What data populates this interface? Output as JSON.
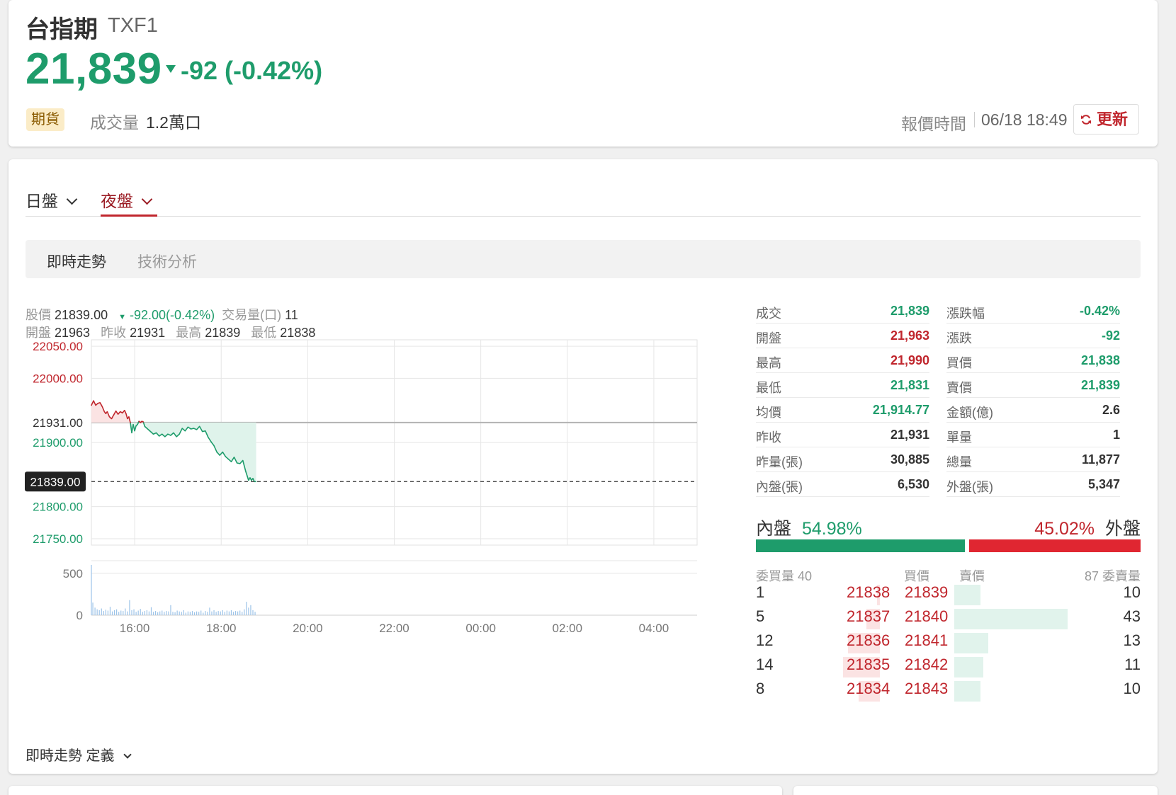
{
  "header": {
    "name": "台指期",
    "code": "TXF1",
    "price": "21,839",
    "change": "-92 (-0.42%)",
    "tag": "期貨",
    "volume_label": "成交量",
    "volume": "1.2萬口",
    "quote_time_label": "報價時間",
    "quote_time": "06/18 18:49",
    "refresh_label": "更新"
  },
  "sessions": {
    "day": "日盤",
    "night": "夜盤",
    "active": "night"
  },
  "subtabs": [
    "即時走勢",
    "技術分析"
  ],
  "chart_info": {
    "price_label": "股價",
    "price": "21839.00",
    "change": "-92.00(-0.42%)",
    "volume_label": "交易量(口)",
    "volume": "11",
    "open_label": "開盤",
    "open": "21963",
    "prev_close_label": "昨收",
    "prev_close": "21931",
    "high_label": "最高",
    "high": "21839",
    "low_label": "最低",
    "low": "21838"
  },
  "chart_data": {
    "type": "line",
    "title": "",
    "y_tick_labels": [
      "22050.00",
      "22000.00",
      "21931.00",
      "21900.00",
      "21839.00",
      "21800.00",
      "21750.00"
    ],
    "y_range": [
      21740,
      22060
    ],
    "reference_price": 21931,
    "current_price": 21839,
    "x_tick_labels": [
      "16:00",
      "18:00",
      "20:00",
      "22:00",
      "00:00",
      "02:00",
      "04:00"
    ],
    "x_range_minutes": [
      0,
      840
    ],
    "x_units": "minutes since 15:00",
    "series": [
      {
        "x": [
          0,
          3,
          6,
          9,
          12,
          15,
          18,
          20,
          22,
          25,
          28,
          31,
          34,
          37,
          40,
          43,
          46,
          48,
          50,
          52,
          54,
          56,
          58,
          60,
          62,
          64,
          66,
          68,
          70,
          72,
          74,
          76,
          79,
          82,
          86,
          90,
          94,
          98,
          102,
          106,
          110,
          114,
          118,
          122,
          126,
          130,
          134,
          138,
          142,
          146,
          150,
          154,
          158,
          162,
          166,
          170,
          174,
          178,
          182,
          186,
          190,
          194,
          198,
          202,
          206,
          210,
          214,
          216,
          218,
          220,
          222,
          224,
          226,
          228
        ],
        "y": [
          21958,
          21965,
          21958,
          21961,
          21962,
          21956,
          21948,
          21945,
          21948,
          21940,
          21937,
          21943,
          21949,
          21944,
          21948,
          21946,
          21950,
          21945,
          21937,
          21940,
          21931,
          21915,
          21928,
          21918,
          21926,
          21928,
          21933,
          21931,
          21933,
          21932,
          21925,
          21923,
          21920,
          21917,
          21913,
          21915,
          21910,
          21913,
          21909,
          21913,
          21911,
          21915,
          21909,
          21913,
          21922,
          21918,
          21924,
          21921,
          21922,
          21920,
          21925,
          21917,
          21918,
          21908,
          21901,
          21895,
          21885,
          21880,
          21885,
          21878,
          21874,
          21870,
          21877,
          21868,
          21867,
          21872,
          21855,
          21848,
          21841,
          21845,
          21841,
          21844,
          21839,
          21839
        ]
      }
    ],
    "volume_axis": {
      "ticks": [
        "500",
        "0"
      ],
      "range": [
        0,
        650
      ]
    },
    "volume_series": [
      {
        "x": 0,
        "v": 600
      },
      {
        "x": 2,
        "v": 150
      },
      {
        "x": 5,
        "v": 90
      },
      {
        "x": 8,
        "v": 70
      },
      {
        "x": 11,
        "v": 60
      },
      {
        "x": 14,
        "v": 80
      },
      {
        "x": 17,
        "v": 50
      },
      {
        "x": 20,
        "v": 65
      },
      {
        "x": 23,
        "v": 55
      },
      {
        "x": 26,
        "v": 100
      },
      {
        "x": 29,
        "v": 45
      },
      {
        "x": 32,
        "v": 60
      },
      {
        "x": 35,
        "v": 70
      },
      {
        "x": 38,
        "v": 40
      },
      {
        "x": 41,
        "v": 55
      },
      {
        "x": 44,
        "v": 50
      },
      {
        "x": 47,
        "v": 80
      },
      {
        "x": 50,
        "v": 45
      },
      {
        "x": 53,
        "v": 180
      },
      {
        "x": 56,
        "v": 60
      },
      {
        "x": 59,
        "v": 70
      },
      {
        "x": 62,
        "v": 40
      },
      {
        "x": 65,
        "v": 55
      },
      {
        "x": 68,
        "v": 75
      },
      {
        "x": 71,
        "v": 40
      },
      {
        "x": 74,
        "v": 50
      },
      {
        "x": 77,
        "v": 60
      },
      {
        "x": 80,
        "v": 45
      },
      {
        "x": 83,
        "v": 95
      },
      {
        "x": 86,
        "v": 40
      },
      {
        "x": 89,
        "v": 50
      },
      {
        "x": 92,
        "v": 35
      },
      {
        "x": 95,
        "v": 45
      },
      {
        "x": 98,
        "v": 55
      },
      {
        "x": 101,
        "v": 40
      },
      {
        "x": 104,
        "v": 50
      },
      {
        "x": 107,
        "v": 45
      },
      {
        "x": 110,
        "v": 120
      },
      {
        "x": 113,
        "v": 40
      },
      {
        "x": 116,
        "v": 35
      },
      {
        "x": 119,
        "v": 55
      },
      {
        "x": 122,
        "v": 45
      },
      {
        "x": 125,
        "v": 40
      },
      {
        "x": 128,
        "v": 60
      },
      {
        "x": 131,
        "v": 30
      },
      {
        "x": 134,
        "v": 45
      },
      {
        "x": 137,
        "v": 40
      },
      {
        "x": 140,
        "v": 50
      },
      {
        "x": 143,
        "v": 35
      },
      {
        "x": 146,
        "v": 45
      },
      {
        "x": 149,
        "v": 40
      },
      {
        "x": 152,
        "v": 55
      },
      {
        "x": 155,
        "v": 30
      },
      {
        "x": 158,
        "v": 50
      },
      {
        "x": 161,
        "v": 40
      },
      {
        "x": 164,
        "v": 90
      },
      {
        "x": 167,
        "v": 45
      },
      {
        "x": 170,
        "v": 60
      },
      {
        "x": 173,
        "v": 40
      },
      {
        "x": 176,
        "v": 50
      },
      {
        "x": 179,
        "v": 45
      },
      {
        "x": 182,
        "v": 60
      },
      {
        "x": 185,
        "v": 40
      },
      {
        "x": 188,
        "v": 55
      },
      {
        "x": 191,
        "v": 45
      },
      {
        "x": 194,
        "v": 60
      },
      {
        "x": 197,
        "v": 40
      },
      {
        "x": 200,
        "v": 50
      },
      {
        "x": 203,
        "v": 45
      },
      {
        "x": 206,
        "v": 55
      },
      {
        "x": 209,
        "v": 40
      },
      {
        "x": 212,
        "v": 70
      },
      {
        "x": 215,
        "v": 160
      },
      {
        "x": 218,
        "v": 90
      },
      {
        "x": 221,
        "v": 120
      },
      {
        "x": 224,
        "v": 60
      },
      {
        "x": 227,
        "v": 40
      }
    ]
  },
  "stats": {
    "rows": [
      {
        "label": "成交",
        "value": "21,839",
        "color": "#1e9c6b"
      },
      {
        "label": "開盤",
        "value": "21,963",
        "color": "#c0262d"
      },
      {
        "label": "最高",
        "value": "21,990",
        "color": "#c0262d"
      },
      {
        "label": "最低",
        "value": "21,831",
        "color": "#1e9c6b"
      },
      {
        "label": "均價",
        "value": "21,914.77",
        "color": "#1e9c6b"
      },
      {
        "label": "昨收",
        "value": "21,931",
        "color": "#333333"
      },
      {
        "label": "昨量(張)",
        "value": "30,885",
        "color": "#333333"
      },
      {
        "label": "內盤(張)",
        "value": "6,530",
        "color": "#333333"
      }
    ],
    "rows2": [
      {
        "label": "漲跌幅",
        "value": "-0.42%",
        "color": "#1e9c6b"
      },
      {
        "label": "漲跌",
        "value": "-92",
        "color": "#1e9c6b"
      },
      {
        "label": "買價",
        "value": "21,838",
        "color": "#1e9c6b"
      },
      {
        "label": "賣價",
        "value": "21,839",
        "color": "#1e9c6b"
      },
      {
        "label": "金額(億)",
        "value": "2.6",
        "color": "#333333"
      },
      {
        "label": "單量",
        "value": "1",
        "color": "#333333"
      },
      {
        "label": "總量",
        "value": "11,877",
        "color": "#333333"
      },
      {
        "label": "外盤(張)",
        "value": "5,347",
        "color": "#333333"
      }
    ]
  },
  "ratio": {
    "inner_label": "內盤",
    "inner_pct": "54.98%",
    "inner_value": 54.98,
    "outer_label": "外盤",
    "outer_pct": "45.02%",
    "outer_value": 45.02
  },
  "orderbook": {
    "bid_qty_header": "委買量 40",
    "bid_price_header": "買價",
    "ask_price_header": "賣價",
    "ask_qty_header": "87 委賣量",
    "rows": [
      {
        "bid_qty": "1",
        "bid": "21838",
        "ask": "21839",
        "ask_qty": "10"
      },
      {
        "bid_qty": "5",
        "bid": "21837",
        "ask": "21840",
        "ask_qty": "43"
      },
      {
        "bid_qty": "12",
        "bid": "21836",
        "ask": "21841",
        "ask_qty": "13"
      },
      {
        "bid_qty": "14",
        "bid": "21835",
        "ask": "21842",
        "ask_qty": "11"
      },
      {
        "bid_qty": "8",
        "bid": "21834",
        "ask": "21843",
        "ask_qty": "10"
      }
    ]
  },
  "definition_label": "即時走勢 定義",
  "colors": {
    "up": "#c0262d",
    "down": "#1e9c6b",
    "accent": "#9b1c24"
  },
  "icons": {
    "refresh": "refresh-icon",
    "chevron": "chevron-down-icon"
  }
}
